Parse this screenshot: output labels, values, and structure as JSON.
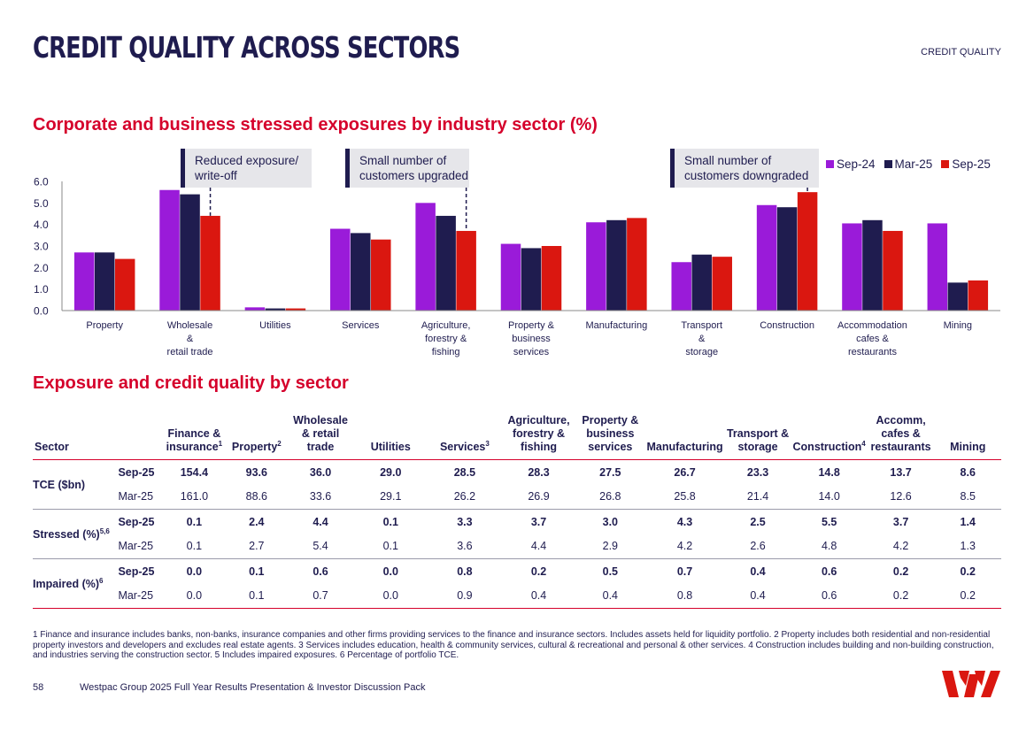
{
  "header": {
    "title": "CREDIT QUALITY ACROSS SECTORS",
    "section": "CREDIT QUALITY"
  },
  "chart_title": "Corporate and business stressed exposures by industry sector (%)",
  "chart_data": {
    "type": "bar",
    "title": "Corporate and business stressed exposures by industry sector (%)",
    "categories": [
      "Property",
      "Wholesale & retail trade",
      "Utilities",
      "Services",
      "Agriculture, forestry & fishing",
      "Property & business services",
      "Manufacturing",
      "Transport & storage",
      "Construction",
      "Accommodation cafes & restaurants",
      "Mining"
    ],
    "category_lines": [
      [
        "Property"
      ],
      [
        "Wholesale",
        "&",
        "retail trade"
      ],
      [
        "Utilities"
      ],
      [
        "Services"
      ],
      [
        "Agriculture,",
        "forestry &",
        "fishing"
      ],
      [
        "Property &",
        "business",
        "services"
      ],
      [
        "Manufacturing"
      ],
      [
        "Transport",
        "&",
        "storage"
      ],
      [
        "Construction"
      ],
      [
        "Accommodation",
        "cafes &",
        "restaurants"
      ],
      [
        "Mining"
      ]
    ],
    "series": [
      {
        "name": "Sep-24",
        "color": "#9a1bd9",
        "values": [
          2.7,
          5.6,
          0.15,
          3.8,
          5.0,
          3.1,
          4.1,
          2.25,
          4.9,
          4.05,
          4.05
        ]
      },
      {
        "name": "Mar-25",
        "color": "#1f1c4f",
        "values": [
          2.7,
          5.4,
          0.1,
          3.6,
          4.4,
          2.9,
          4.2,
          2.6,
          4.8,
          4.2,
          1.3
        ]
      },
      {
        "name": "Sep-25",
        "color": "#da1710",
        "values": [
          2.4,
          4.4,
          0.1,
          3.3,
          3.7,
          3.0,
          4.3,
          2.5,
          5.5,
          3.7,
          1.4
        ]
      }
    ],
    "yticks": [
      "0.0",
      "1.0",
      "2.0",
      "3.0",
      "4.0",
      "5.0",
      "6.0"
    ],
    "ylim": [
      0,
      6
    ],
    "xlabel": "",
    "ylabel": "",
    "legend_position": "top-right",
    "annotations": [
      {
        "text": [
          "Reduced exposure/",
          "write-off"
        ],
        "category_index": 1
      },
      {
        "text": [
          "Small number of",
          "customers upgraded"
        ],
        "category_index": 4
      },
      {
        "text": [
          "Small number of",
          "customers downgraded"
        ],
        "category_index": 8
      }
    ]
  },
  "table": {
    "title": "Exposure and credit quality by sector",
    "sector_label": "Sector",
    "columns": [
      {
        "lines": [
          "Finance &",
          "insurance"
        ],
        "sup": "1"
      },
      {
        "lines": [
          "Property"
        ],
        "sup": "2"
      },
      {
        "lines": [
          "Wholesale",
          "& retail",
          "trade"
        ],
        "sup": ""
      },
      {
        "lines": [
          "Utilities"
        ],
        "sup": ""
      },
      {
        "lines": [
          "Services"
        ],
        "sup": "3"
      },
      {
        "lines": [
          "Agriculture,",
          "forestry &",
          "fishing"
        ],
        "sup": ""
      },
      {
        "lines": [
          "Property &",
          "business",
          "services"
        ],
        "sup": ""
      },
      {
        "lines": [
          "Manufacturing"
        ],
        "sup": ""
      },
      {
        "lines": [
          "Transport &",
          "storage"
        ],
        "sup": ""
      },
      {
        "lines": [
          "Construction"
        ],
        "sup": "4"
      },
      {
        "lines": [
          "Accomm,",
          "cafes &",
          "restaurants"
        ],
        "sup": ""
      },
      {
        "lines": [
          "Mining"
        ],
        "sup": ""
      }
    ],
    "groups": [
      {
        "label": "TCE ($bn)",
        "sup": "",
        "rows": [
          {
            "period": "Sep-25",
            "values": [
              "154.4",
              "93.6",
              "36.0",
              "29.0",
              "28.5",
              "28.3",
              "27.5",
              "26.7",
              "23.3",
              "14.8",
              "13.7",
              "8.6"
            ]
          },
          {
            "period": "Mar-25",
            "values": [
              "161.0",
              "88.6",
              "33.6",
              "29.1",
              "26.2",
              "26.9",
              "26.8",
              "25.8",
              "21.4",
              "14.0",
              "12.6",
              "8.5"
            ]
          }
        ]
      },
      {
        "label": "Stressed (%)",
        "sup": "5,6",
        "rows": [
          {
            "period": "Sep-25",
            "values": [
              "0.1",
              "2.4",
              "4.4",
              "0.1",
              "3.3",
              "3.7",
              "3.0",
              "4.3",
              "2.5",
              "5.5",
              "3.7",
              "1.4"
            ]
          },
          {
            "period": "Mar-25",
            "values": [
              "0.1",
              "2.7",
              "5.4",
              "0.1",
              "3.6",
              "4.4",
              "2.9",
              "4.2",
              "2.6",
              "4.8",
              "4.2",
              "1.3"
            ]
          }
        ]
      },
      {
        "label": "Impaired (%)",
        "sup": "6",
        "rows": [
          {
            "period": "Sep-25",
            "values": [
              "0.0",
              "0.1",
              "0.6",
              "0.0",
              "0.8",
              "0.2",
              "0.5",
              "0.7",
              "0.4",
              "0.6",
              "0.2",
              "0.2"
            ]
          },
          {
            "period": "Mar-25",
            "values": [
              "0.0",
              "0.1",
              "0.7",
              "0.0",
              "0.9",
              "0.4",
              "0.4",
              "0.8",
              "0.4",
              "0.6",
              "0.2",
              "0.2"
            ]
          }
        ]
      }
    ]
  },
  "footnotes": "1 Finance and insurance includes banks, non-banks, insurance companies and other firms providing services to the finance and insurance sectors. Includes assets held for liquidity portfolio. 2 Property includes both residential and non-residential property investors and developers and excludes real estate agents. 3 Services includes education, health & community services, cultural & recreational and personal & other services. 4 Construction includes building and non-building construction, and industries serving the construction sector. 5 Includes impaired exposures. 6 Percentage of portfolio TCE.",
  "footer": {
    "page": "58",
    "text": "Westpac Group 2025 Full Year Results Presentation & Investor Discussion Pack"
  },
  "colors": {
    "navy": "#1f1c4f",
    "red": "#d5002b",
    "purple": "#9a1bd9",
    "bar_red": "#da1710"
  }
}
